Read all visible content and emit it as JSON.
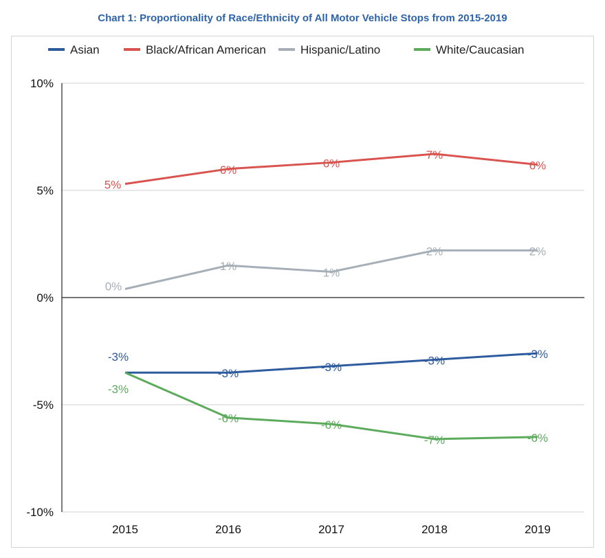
{
  "chart_data": {
    "type": "line",
    "title": "Chart 1: Proportionality of Race/Ethnicity of All Motor Vehicle Stops from 2015-2019",
    "xlabel": "",
    "ylabel": "",
    "categories": [
      "2015",
      "2016",
      "2017",
      "2018",
      "2019"
    ],
    "ylim": [
      -10,
      10
    ],
    "y_ticks": [
      10,
      5,
      0,
      -5,
      -10
    ],
    "y_tick_labels": [
      "10%",
      "5%",
      "0%",
      "-5%",
      "-10%"
    ],
    "grid": true,
    "legend_position": "top",
    "series": [
      {
        "name": "Asian",
        "color": "#2e5b9e",
        "values": [
          -3.5,
          -3.5,
          -3.2,
          -2.9,
          -2.6
        ],
        "labels": [
          "-3%",
          "-3%",
          "-3%",
          "-3%",
          "-3%"
        ]
      },
      {
        "name": "Black/African American",
        "color": "#d9534f",
        "values": [
          5.3,
          6.0,
          6.3,
          6.7,
          6.2
        ],
        "labels": [
          "5%",
          "6%",
          "6%",
          "7%",
          "6%"
        ]
      },
      {
        "name": "Hispanic/Latino",
        "color": "#a6aeb7",
        "values": [
          0.4,
          1.5,
          1.2,
          2.2,
          2.2
        ],
        "labels": [
          "0%",
          "1%",
          "1%",
          "2%",
          "2%"
        ]
      },
      {
        "name": "White/Caucasian",
        "color": "#5cab5c",
        "values": [
          -3.5,
          -5.6,
          -5.9,
          -6.6,
          -6.5
        ],
        "labels": [
          "-3%",
          "-6%",
          "-6%",
          "-7%",
          "-6%"
        ]
      }
    ]
  }
}
